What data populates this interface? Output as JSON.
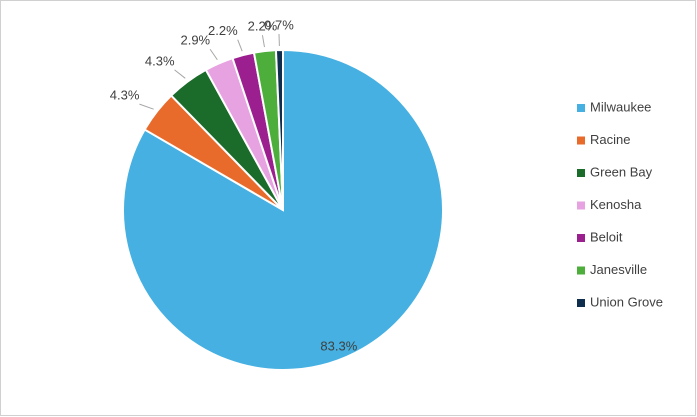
{
  "chart_data": {
    "type": "pie",
    "categories": [
      "Milwaukee",
      "Racine",
      "Green Bay",
      "Kenosha",
      "Beloit",
      "Janesville",
      "Union Grove"
    ],
    "values": [
      83.3,
      4.3,
      4.3,
      2.9,
      2.2,
      2.2,
      0.7
    ],
    "value_labels": [
      "83.3%",
      "4.3%",
      "4.3%",
      "2.9%",
      "2.2%",
      "2.2%",
      "0.7%"
    ],
    "colors": [
      "#45b0e1",
      "#e86b2c",
      "#1b6b2b",
      "#e7a2e1",
      "#9c1f8f",
      "#4eae3c",
      "#0f2d4c"
    ],
    "legend": "right"
  }
}
